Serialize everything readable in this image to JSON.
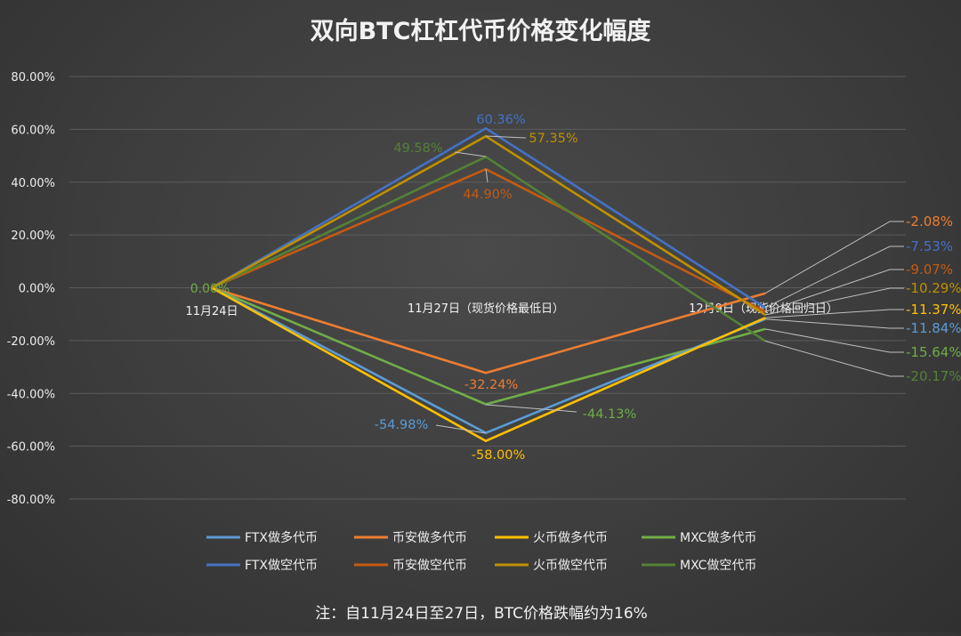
{
  "chart_data": {
    "type": "line",
    "title": "双向BTC杠杠代币价格变化幅度",
    "categories": [
      "11月24日",
      "11月27日（现货价格最低日）",
      "12月9日（现货价格回归日）"
    ],
    "ylim": [
      -80,
      80
    ],
    "ytick_values": [
      80,
      60,
      40,
      20,
      0,
      -20,
      -40,
      -60,
      -80
    ],
    "ytick_labels": [
      "80.00%",
      "60.00%",
      "40.00%",
      "20.00%",
      "0.00%",
      "-20.00%",
      "-40.00%",
      "-60.00%",
      "-80.00%"
    ],
    "grid": true,
    "legend_position": "bottom",
    "start_label": "0.00%",
    "series": [
      {
        "name": "FTX做多代币",
        "color": "#5b9bd5",
        "values": [
          0,
          -54.98,
          -11.84
        ],
        "labels": [
          "",
          "-54.98%",
          "-11.84%"
        ]
      },
      {
        "name": "币安做多代币",
        "color": "#ed7d31",
        "values": [
          0,
          -32.24,
          -2.08
        ],
        "labels": [
          "",
          "-32.24%",
          "-2.08%"
        ]
      },
      {
        "name": "火币做多代币",
        "color": "#ffc000",
        "values": [
          0,
          -58.0,
          -11.37
        ],
        "labels": [
          "",
          "-58.00%",
          "-11.37%"
        ]
      },
      {
        "name": "MXC做多代币",
        "color": "#70ad47",
        "values": [
          0,
          -44.13,
          -15.64
        ],
        "labels": [
          "",
          "-44.13%",
          "-15.64%"
        ]
      },
      {
        "name": "FTX做空代币",
        "color": "#4472c4",
        "values": [
          0,
          60.36,
          -7.53
        ],
        "labels": [
          "",
          "60.36%",
          "-7.53%"
        ]
      },
      {
        "name": "币安做空代币",
        "color": "#c55a11",
        "values": [
          0,
          44.9,
          -9.07
        ],
        "labels": [
          "",
          "44.90%",
          "-9.07%"
        ]
      },
      {
        "name": "火币做空代币",
        "color": "#bf9000",
        "values": [
          0,
          57.35,
          -10.29
        ],
        "labels": [
          "",
          "57.35%",
          "-10.29%"
        ]
      },
      {
        "name": "MXC做空代币",
        "color": "#548235",
        "values": [
          0,
          49.58,
          -20.17
        ],
        "labels": [
          "",
          "49.58%",
          "-20.17%"
        ]
      }
    ],
    "note": "注：自11月24日至27日，BTC价格跌幅约为16%"
  }
}
